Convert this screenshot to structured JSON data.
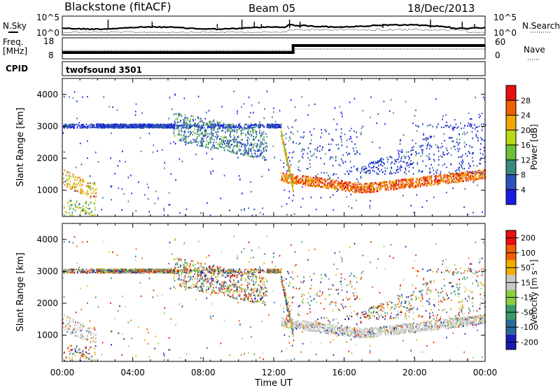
{
  "header": {
    "title": "Blackstone (fitACF)",
    "beam": "Beam 05",
    "date": "18/Dec/2013"
  },
  "sky_panel": {
    "left_label": "N.Sky",
    "right_label": "N.Search",
    "left_ticks": [
      "10^5",
      "10^0"
    ],
    "right_ticks": [
      "10^5",
      "10^0"
    ]
  },
  "freq_panel": {
    "left_label_line1": "Freq.",
    "left_label_line2": "[MHz]",
    "right_label": "Nave",
    "left_ticks": [
      "18",
      "8"
    ],
    "right_ticks": [
      "60",
      "0"
    ]
  },
  "cpid": {
    "label": "CPID",
    "program": "twofsound 3501"
  },
  "chart_data": [
    {
      "type": "heatmap",
      "name": "power",
      "ylabel": "Slant Range [km]",
      "xlabel": "Time UT",
      "x_ticks": [
        "00:00",
        "04:00",
        "08:00",
        "12:00",
        "16:00",
        "20:00",
        "00:00"
      ],
      "xlim_hours": [
        0,
        24
      ],
      "y_ticks": [
        1000,
        2000,
        3000,
        4000
      ],
      "ylim": [
        180,
        4500
      ],
      "colorbar": {
        "label": "Power [dB]",
        "ticks": [
          4,
          8,
          12,
          16,
          20,
          24,
          28
        ],
        "range": [
          0,
          32
        ],
        "colors": [
          "#1a1ae6",
          "#2a52b8",
          "#3a8a7a",
          "#6cc03a",
          "#b8d81a",
          "#f0a800",
          "#f06000",
          "#e61010"
        ]
      },
      "echo_bands": [
        {
          "t_start": 0.0,
          "t_end": 1.6,
          "r_start": 1400,
          "r_end": 1000
        },
        {
          "t_start": 0.2,
          "t_end": 1.8,
          "r_start": 250,
          "r_end": 600
        },
        {
          "t_start": 6.5,
          "t_end": 11.5,
          "r_start": 2900,
          "r_end": 2300
        },
        {
          "t_start": 12.5,
          "t_end": 17.0,
          "r_start": 1400,
          "r_end": 1050
        },
        {
          "t_start": 17.0,
          "t_end": 24.0,
          "r_start": 1050,
          "r_end": 1500
        }
      ]
    },
    {
      "type": "heatmap",
      "name": "velocity",
      "ylabel": "Slant Range [km]",
      "xlabel": "Time UT",
      "x_ticks": [
        "00:00",
        "04:00",
        "08:00",
        "12:00",
        "16:00",
        "20:00",
        "00:00"
      ],
      "xlim_hours": [
        0,
        24
      ],
      "y_ticks": [
        1000,
        2000,
        3000,
        4000
      ],
      "ylim": [
        180,
        4500
      ],
      "colorbar": {
        "label": "Velocity [m s⁻¹]",
        "ticks": [
          "200",
          "100",
          "50",
          "15",
          "-15",
          "-50",
          "-100",
          "-200"
        ],
        "colors": [
          "#1a1ab4",
          "#2a6a9a",
          "#3a9a6a",
          "#8cd040",
          "#c8c8c8",
          "#f0b000",
          "#f06000",
          "#e61010"
        ]
      }
    }
  ],
  "x_axis_title": "Time UT"
}
